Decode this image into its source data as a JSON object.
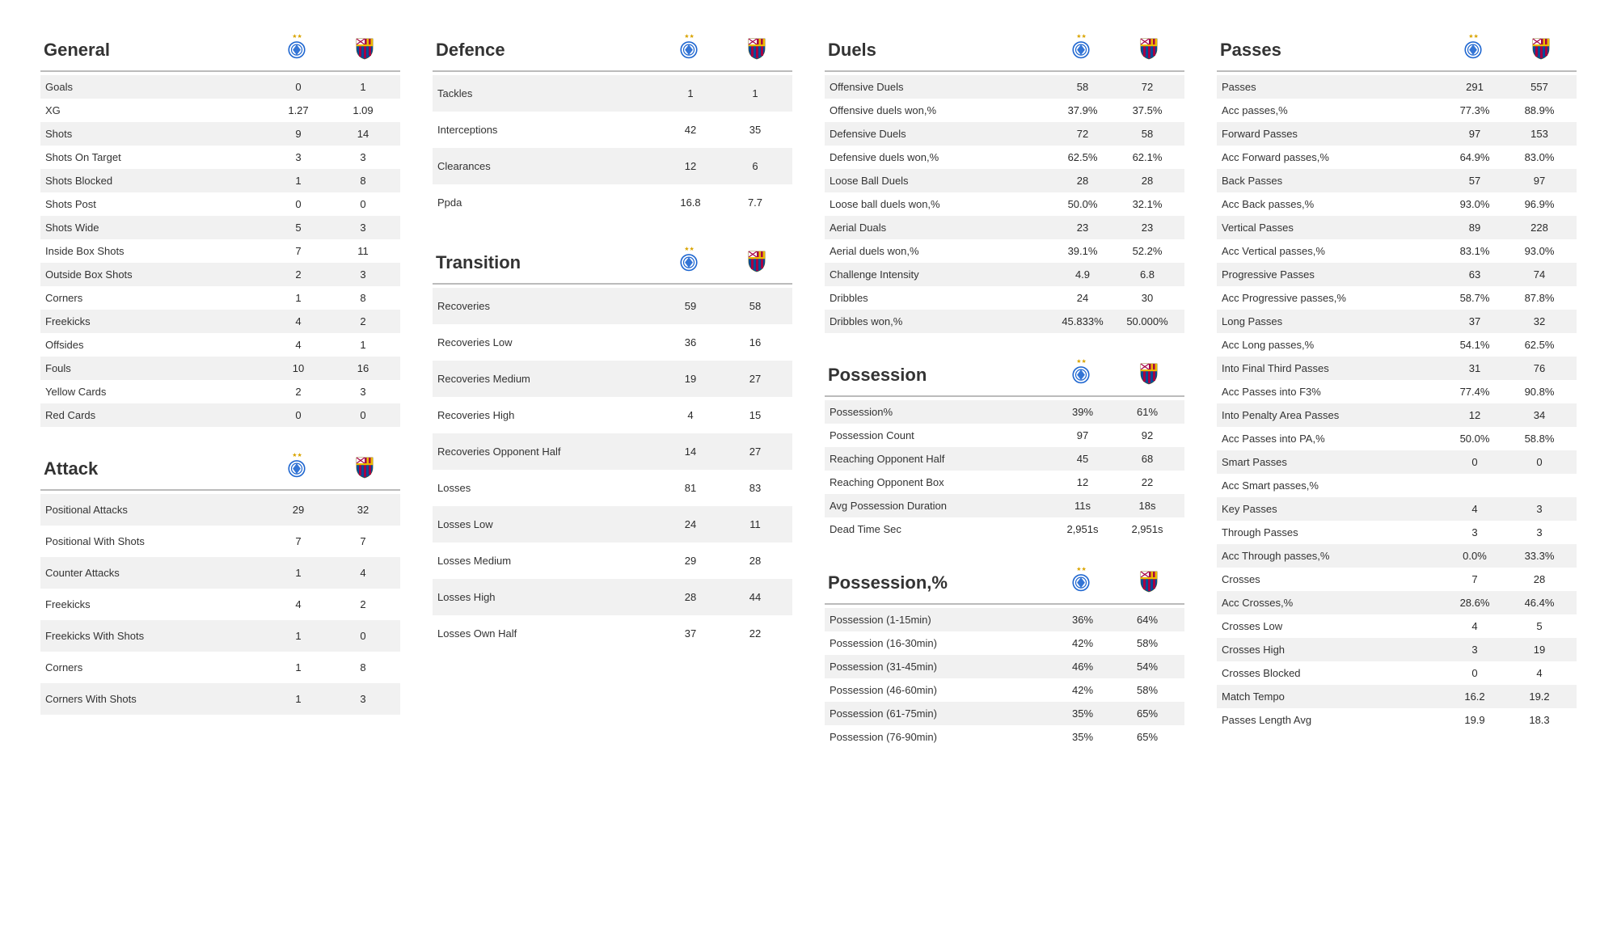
{
  "teams": {
    "home": "Dynamo Kyiv",
    "away": "FC Barcelona"
  },
  "colors": {
    "dyn_blue": "#1e66d0",
    "dyn_white": "#ffffff",
    "bar_red": "#a50044",
    "bar_blue": "#004d98",
    "bar_gold": "#edbb00",
    "row_alt": "#f1f1f1",
    "text": "#222222"
  },
  "layout": {
    "columns": [
      [
        "general",
        "attack"
      ],
      [
        "defence",
        "transition"
      ],
      [
        "duels",
        "possession",
        "possession_pct"
      ],
      [
        "passes"
      ]
    ]
  },
  "sections": {
    "general": {
      "title": "General",
      "rows": [
        {
          "label": "Goals",
          "h": "0",
          "a": "1"
        },
        {
          "label": "XG",
          "h": "1.27",
          "a": "1.09"
        },
        {
          "label": "Shots",
          "h": "9",
          "a": "14"
        },
        {
          "label": "Shots On Target",
          "h": "3",
          "a": "3"
        },
        {
          "label": "Shots Blocked",
          "h": "1",
          "a": "8"
        },
        {
          "label": "Shots Post",
          "h": "0",
          "a": "0"
        },
        {
          "label": "Shots Wide",
          "h": "5",
          "a": "3"
        },
        {
          "label": "Inside Box Shots",
          "h": "7",
          "a": "11"
        },
        {
          "label": "Outside Box Shots",
          "h": "2",
          "a": "3"
        },
        {
          "label": "Corners",
          "h": "1",
          "a": "8"
        },
        {
          "label": "Freekicks",
          "h": "4",
          "a": "2"
        },
        {
          "label": "Offsides",
          "h": "4",
          "a": "1"
        },
        {
          "label": "Fouls",
          "h": "10",
          "a": "16"
        },
        {
          "label": "Yellow Cards",
          "h": "2",
          "a": "3"
        },
        {
          "label": "Red Cards",
          "h": "0",
          "a": "0"
        }
      ]
    },
    "attack": {
      "title": "Attack",
      "rows": [
        {
          "label": "Positional Attacks",
          "h": "29",
          "a": "32"
        },
        {
          "label": "Positional With Shots",
          "h": "7",
          "a": "7"
        },
        {
          "label": "Counter Attacks",
          "h": "1",
          "a": "4"
        },
        {
          "label": "Freekicks",
          "h": "4",
          "a": "2"
        },
        {
          "label": "Freekicks With Shots",
          "h": "1",
          "a": "0"
        },
        {
          "label": "Corners",
          "h": "1",
          "a": "8"
        },
        {
          "label": "Corners With Shots",
          "h": "1",
          "a": "3"
        }
      ]
    },
    "defence": {
      "title": "Defence",
      "rows": [
        {
          "label": "Tackles",
          "h": "1",
          "a": "1"
        },
        {
          "label": "Interceptions",
          "h": "42",
          "a": "35"
        },
        {
          "label": "Clearances",
          "h": "12",
          "a": "6"
        },
        {
          "label": "Ppda",
          "h": "16.8",
          "a": "7.7"
        }
      ]
    },
    "transition": {
      "title": "Transition",
      "rows": [
        {
          "label": "Recoveries",
          "h": "59",
          "a": "58"
        },
        {
          "label": "Recoveries Low",
          "h": "36",
          "a": "16"
        },
        {
          "label": "Recoveries Medium",
          "h": "19",
          "a": "27"
        },
        {
          "label": "Recoveries High",
          "h": "4",
          "a": "15"
        },
        {
          "label": "Recoveries Opponent Half",
          "h": "14",
          "a": "27"
        },
        {
          "label": "Losses",
          "h": "81",
          "a": "83"
        },
        {
          "label": "Losses Low",
          "h": "24",
          "a": "11"
        },
        {
          "label": "Losses Medium",
          "h": "29",
          "a": "28"
        },
        {
          "label": "Losses High",
          "h": "28",
          "a": "44"
        },
        {
          "label": "Losses Own Half",
          "h": "37",
          "a": "22"
        }
      ]
    },
    "duels": {
      "title": "Duels",
      "rows": [
        {
          "label": "Offensive Duels",
          "h": "58",
          "a": "72"
        },
        {
          "label": "Offensive duels won,%",
          "h": "37.9%",
          "a": "37.5%"
        },
        {
          "label": "Defensive Duels",
          "h": "72",
          "a": "58"
        },
        {
          "label": "Defensive duels won,%",
          "h": "62.5%",
          "a": "62.1%"
        },
        {
          "label": "Loose Ball Duels",
          "h": "28",
          "a": "28"
        },
        {
          "label": "Loose ball duels won,%",
          "h": "50.0%",
          "a": "32.1%"
        },
        {
          "label": "Aerial Duals",
          "h": "23",
          "a": "23"
        },
        {
          "label": "Aerial duels won,%",
          "h": "39.1%",
          "a": "52.2%"
        },
        {
          "label": "Challenge Intensity",
          "h": "4.9",
          "a": "6.8"
        },
        {
          "label": "Dribbles",
          "h": "24",
          "a": "30"
        },
        {
          "label": "Dribbles won,%",
          "h": "45.833%",
          "a": "50.000%"
        }
      ]
    },
    "possession": {
      "title": "Possession",
      "rows": [
        {
          "label": "Possession%",
          "h": "39%",
          "a": "61%"
        },
        {
          "label": "Possession Count",
          "h": "97",
          "a": "92"
        },
        {
          "label": "Reaching Opponent Half",
          "h": "45",
          "a": "68"
        },
        {
          "label": "Reaching Opponent Box",
          "h": "12",
          "a": "22"
        },
        {
          "label": "Avg Possession Duration",
          "h": "11s",
          "a": "18s"
        },
        {
          "label": "Dead Time Sec",
          "h": "2,951s",
          "a": "2,951s"
        }
      ]
    },
    "possession_pct": {
      "title": "Possession,%",
      "rows": [
        {
          "label": "Possession (1-15min)",
          "h": "36%",
          "a": "64%"
        },
        {
          "label": "Possession (16-30min)",
          "h": "42%",
          "a": "58%"
        },
        {
          "label": "Possession (31-45min)",
          "h": "46%",
          "a": "54%"
        },
        {
          "label": "Possession (46-60min)",
          "h": "42%",
          "a": "58%"
        },
        {
          "label": "Possession (61-75min)",
          "h": "35%",
          "a": "65%"
        },
        {
          "label": "Possession (76-90min)",
          "h": "35%",
          "a": "65%"
        }
      ]
    },
    "passes": {
      "title": "Passes",
      "rows": [
        {
          "label": "Passes",
          "h": "291",
          "a": "557"
        },
        {
          "label": "Acc passes,%",
          "h": "77.3%",
          "a": "88.9%"
        },
        {
          "label": "Forward Passes",
          "h": "97",
          "a": "153"
        },
        {
          "label": "Acc Forward passes,%",
          "h": "64.9%",
          "a": "83.0%"
        },
        {
          "label": "Back Passes",
          "h": "57",
          "a": "97"
        },
        {
          "label": "Acc Back passes,%",
          "h": "93.0%",
          "a": "96.9%"
        },
        {
          "label": "Vertical Passes",
          "h": "89",
          "a": "228"
        },
        {
          "label": "Acc Vertical passes,%",
          "h": "83.1%",
          "a": "93.0%"
        },
        {
          "label": "Progressive Passes",
          "h": "63",
          "a": "74"
        },
        {
          "label": "Acc Progressive passes,%",
          "h": "58.7%",
          "a": "87.8%"
        },
        {
          "label": "Long Passes",
          "h": "37",
          "a": "32"
        },
        {
          "label": "Acc Long passes,%",
          "h": "54.1%",
          "a": "62.5%"
        },
        {
          "label": "Into Final Third Passes",
          "h": "31",
          "a": "76"
        },
        {
          "label": "Acc Passes into F3%",
          "h": "77.4%",
          "a": "90.8%"
        },
        {
          "label": "Into Penalty Area Passes",
          "h": "12",
          "a": "34"
        },
        {
          "label": "Acc Passes into PA,%",
          "h": "50.0%",
          "a": "58.8%"
        },
        {
          "label": "Smart Passes",
          "h": "0",
          "a": "0"
        },
        {
          "label": "Acc Smart passes,%",
          "h": "",
          "a": ""
        },
        {
          "label": "Key Passes",
          "h": "4",
          "a": "3"
        },
        {
          "label": "Through Passes",
          "h": "3",
          "a": "3"
        },
        {
          "label": "Acc Through passes,%",
          "h": "0.0%",
          "a": "33.3%"
        },
        {
          "label": "Crosses",
          "h": "7",
          "a": "28"
        },
        {
          "label": "Acc Crosses,%",
          "h": "28.6%",
          "a": "46.4%"
        },
        {
          "label": "Crosses Low",
          "h": "4",
          "a": "5"
        },
        {
          "label": "Crosses High",
          "h": "3",
          "a": "19"
        },
        {
          "label": "Crosses Blocked",
          "h": "0",
          "a": "4"
        },
        {
          "label": "Match Tempo",
          "h": "16.2",
          "a": "19.2"
        },
        {
          "label": "Passes Length Avg",
          "h": "19.9",
          "a": "18.3"
        }
      ]
    }
  }
}
